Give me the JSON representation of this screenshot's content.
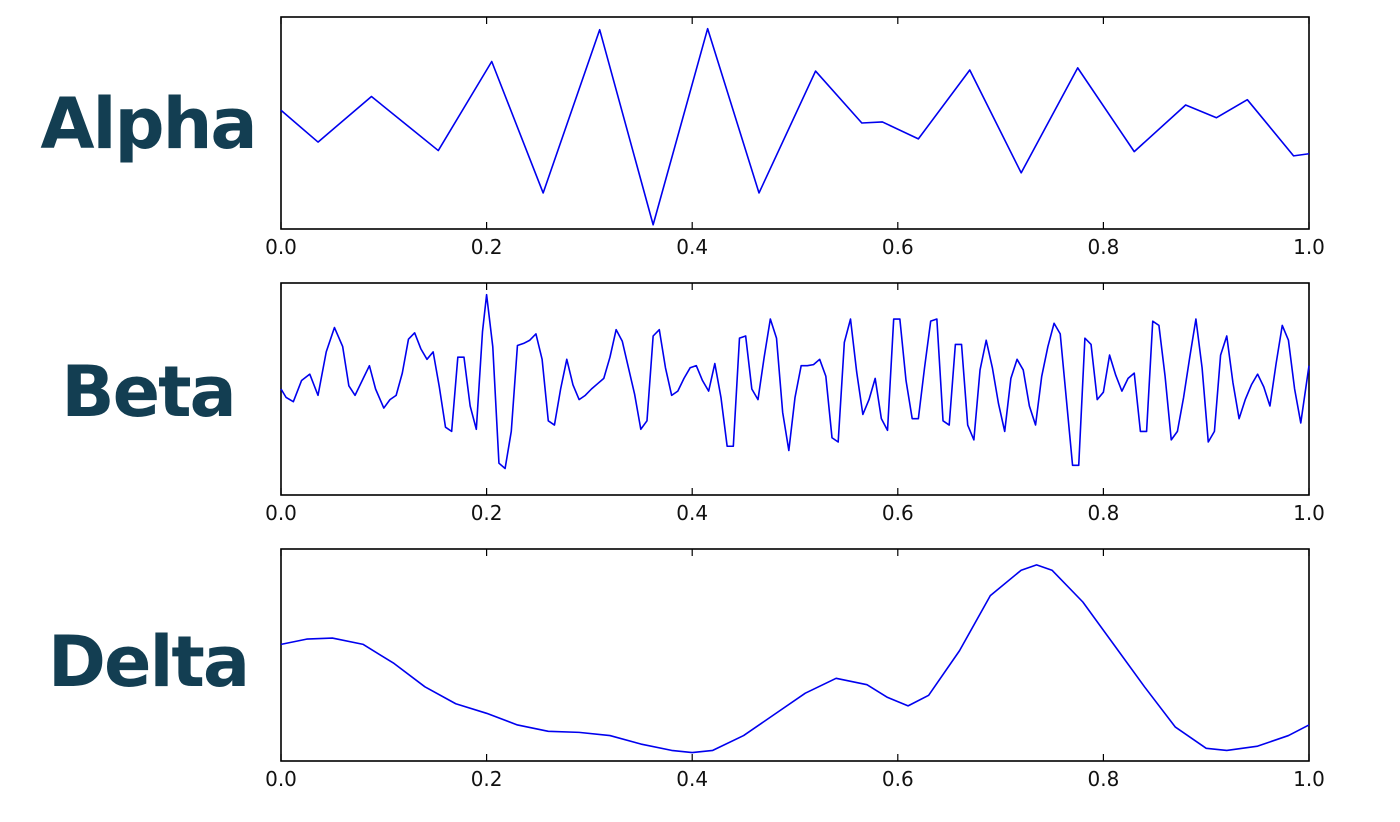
{
  "chart_data": [
    {
      "type": "line",
      "label": "Alpha",
      "xlim": [
        0.0,
        1.0
      ],
      "x_ticks": [
        "0.0",
        "0.2",
        "0.4",
        "0.6",
        "0.8",
        "1.0"
      ],
      "ylim": [
        -1.0,
        1.0
      ],
      "grid": false,
      "series": [
        {
          "color": "#0000ee",
          "x": [
            0.0,
            0.036,
            0.088,
            0.153,
            0.205,
            0.255,
            0.31,
            0.362,
            0.415,
            0.465,
            0.52,
            0.565,
            0.585,
            0.62,
            0.67,
            0.72,
            0.775,
            0.83,
            0.88,
            0.91,
            0.94,
            0.985,
            1.0
          ],
          "y": [
            0.12,
            -0.18,
            0.25,
            -0.26,
            0.58,
            -0.66,
            0.88,
            -0.96,
            0.89,
            -0.66,
            0.49,
            0.0,
            0.01,
            -0.15,
            0.5,
            -0.47,
            0.52,
            -0.27,
            0.17,
            0.05,
            0.22,
            -0.31,
            -0.29
          ]
        }
      ]
    },
    {
      "type": "line",
      "label": "Beta",
      "xlim": [
        0.0,
        1.0
      ],
      "x_ticks": [
        "0.0",
        "0.2",
        "0.4",
        "0.6",
        "0.8",
        "1.0"
      ],
      "ylim": [
        -1.0,
        1.0
      ],
      "grid": false,
      "series": [
        {
          "color": "#0000ee",
          "x": [
            0.0,
            0.005,
            0.012,
            0.02,
            0.028,
            0.036,
            0.044,
            0.052,
            0.06,
            0.066,
            0.072,
            0.08,
            0.086,
            0.092,
            0.1,
            0.106,
            0.112,
            0.118,
            0.124,
            0.13,
            0.136,
            0.142,
            0.148,
            0.154,
            0.16,
            0.166,
            0.172,
            0.178,
            0.184,
            0.19,
            0.196,
            0.2,
            0.206,
            0.212,
            0.218,
            0.224,
            0.23,
            0.236,
            0.242,
            0.248,
            0.254,
            0.26,
            0.266,
            0.272,
            0.278,
            0.284,
            0.29,
            0.296,
            0.302,
            0.308,
            0.314,
            0.32,
            0.326,
            0.332,
            0.338,
            0.344,
            0.35,
            0.356,
            0.362,
            0.368,
            0.374,
            0.38,
            0.386,
            0.392,
            0.398,
            0.404,
            0.41,
            0.416,
            0.422,
            0.428,
            0.434,
            0.44,
            0.446,
            0.452,
            0.458,
            0.464,
            0.47,
            0.476,
            0.482,
            0.488,
            0.494,
            0.5,
            0.506,
            0.512,
            0.518,
            0.524,
            0.53,
            0.536,
            0.542,
            0.548,
            0.554,
            0.56,
            0.566,
            0.572,
            0.578,
            0.584,
            0.59,
            0.596,
            0.602,
            0.608,
            0.614,
            0.62,
            0.626,
            0.632,
            0.638,
            0.644,
            0.65,
            0.656,
            0.662,
            0.668,
            0.674,
            0.68,
            0.686,
            0.692,
            0.698,
            0.704,
            0.71,
            0.716,
            0.722,
            0.728,
            0.734,
            0.74,
            0.746,
            0.752,
            0.758,
            0.764,
            0.77,
            0.776,
            0.782,
            0.788,
            0.794,
            0.8,
            0.806,
            0.812,
            0.818,
            0.824,
            0.83,
            0.836,
            0.842,
            0.848,
            0.854,
            0.86,
            0.866,
            0.872,
            0.878,
            0.884,
            0.89,
            0.896,
            0.902,
            0.908,
            0.914,
            0.92,
            0.926,
            0.932,
            0.938,
            0.944,
            0.95,
            0.956,
            0.962,
            0.968,
            0.974,
            0.98,
            0.986,
            0.992,
            1.0
          ],
          "y": [
            0.0,
            -0.08,
            -0.12,
            0.08,
            0.14,
            -0.06,
            0.35,
            0.58,
            0.4,
            0.03,
            -0.06,
            0.1,
            0.22,
            0.0,
            -0.18,
            -0.1,
            -0.06,
            0.15,
            0.47,
            0.53,
            0.38,
            0.28,
            0.35,
            0.02,
            -0.36,
            -0.4,
            0.3,
            0.3,
            -0.16,
            -0.38,
            0.54,
            0.89,
            0.4,
            -0.7,
            -0.75,
            -0.4,
            0.41,
            0.43,
            0.46,
            0.52,
            0.28,
            -0.3,
            -0.34,
            0.0,
            0.28,
            0.04,
            -0.1,
            -0.06,
            0.0,
            0.05,
            0.1,
            0.3,
            0.56,
            0.45,
            0.2,
            -0.05,
            -0.38,
            -0.3,
            0.5,
            0.56,
            0.2,
            -0.06,
            -0.02,
            0.1,
            0.2,
            0.22,
            0.08,
            -0.02,
            0.24,
            -0.08,
            -0.54,
            -0.54,
            0.48,
            0.5,
            0.0,
            -0.1,
            0.3,
            0.66,
            0.48,
            -0.22,
            -0.58,
            -0.08,
            0.22,
            0.22,
            0.23,
            0.28,
            0.12,
            -0.46,
            -0.5,
            0.44,
            0.66,
            0.16,
            -0.24,
            -0.1,
            0.1,
            -0.28,
            -0.39,
            0.66,
            0.66,
            0.08,
            -0.28,
            -0.28,
            0.2,
            0.64,
            0.66,
            -0.3,
            -0.34,
            0.42,
            0.42,
            -0.34,
            -0.48,
            0.18,
            0.46,
            0.2,
            -0.14,
            -0.4,
            0.1,
            0.28,
            0.18,
            -0.16,
            -0.34,
            0.12,
            0.4,
            0.62,
            0.52,
            -0.1,
            -0.72,
            -0.72,
            0.48,
            0.42,
            -0.1,
            -0.03,
            0.32,
            0.13,
            -0.02,
            0.1,
            0.15,
            -0.4,
            -0.4,
            0.64,
            0.6,
            0.12,
            -0.48,
            -0.4,
            -0.08,
            0.3,
            0.66,
            0.2,
            -0.5,
            -0.4,
            0.32,
            0.5,
            0.06,
            -0.28,
            -0.1,
            0.04,
            0.14,
            0.02,
            -0.16,
            0.24,
            0.6,
            0.46,
            0.0,
            -0.32,
            0.22
          ]
        }
      ]
    },
    {
      "type": "line",
      "label": "Delta",
      "xlim": [
        0.0,
        1.0
      ],
      "x_ticks": [
        "0.0",
        "0.2",
        "0.4",
        "0.6",
        "0.8",
        "1.0"
      ],
      "ylim": [
        -1.0,
        1.0
      ],
      "grid": false,
      "series": [
        {
          "color": "#0000ee",
          "x": [
            0.0,
            0.025,
            0.05,
            0.08,
            0.11,
            0.14,
            0.17,
            0.2,
            0.23,
            0.26,
            0.29,
            0.32,
            0.35,
            0.38,
            0.4,
            0.42,
            0.45,
            0.48,
            0.51,
            0.54,
            0.57,
            0.59,
            0.61,
            0.63,
            0.66,
            0.69,
            0.72,
            0.735,
            0.75,
            0.78,
            0.81,
            0.84,
            0.87,
            0.9,
            0.92,
            0.95,
            0.98,
            1.0
          ],
          "y": [
            0.1,
            0.15,
            0.16,
            0.1,
            -0.08,
            -0.3,
            -0.46,
            -0.55,
            -0.66,
            -0.72,
            -0.73,
            -0.76,
            -0.84,
            -0.9,
            -0.92,
            -0.9,
            -0.76,
            -0.56,
            -0.36,
            -0.22,
            -0.28,
            -0.4,
            -0.48,
            -0.38,
            0.04,
            0.56,
            0.8,
            0.85,
            0.8,
            0.5,
            0.1,
            -0.3,
            -0.68,
            -0.88,
            -0.9,
            -0.86,
            -0.76,
            -0.66
          ]
        }
      ]
    }
  ]
}
